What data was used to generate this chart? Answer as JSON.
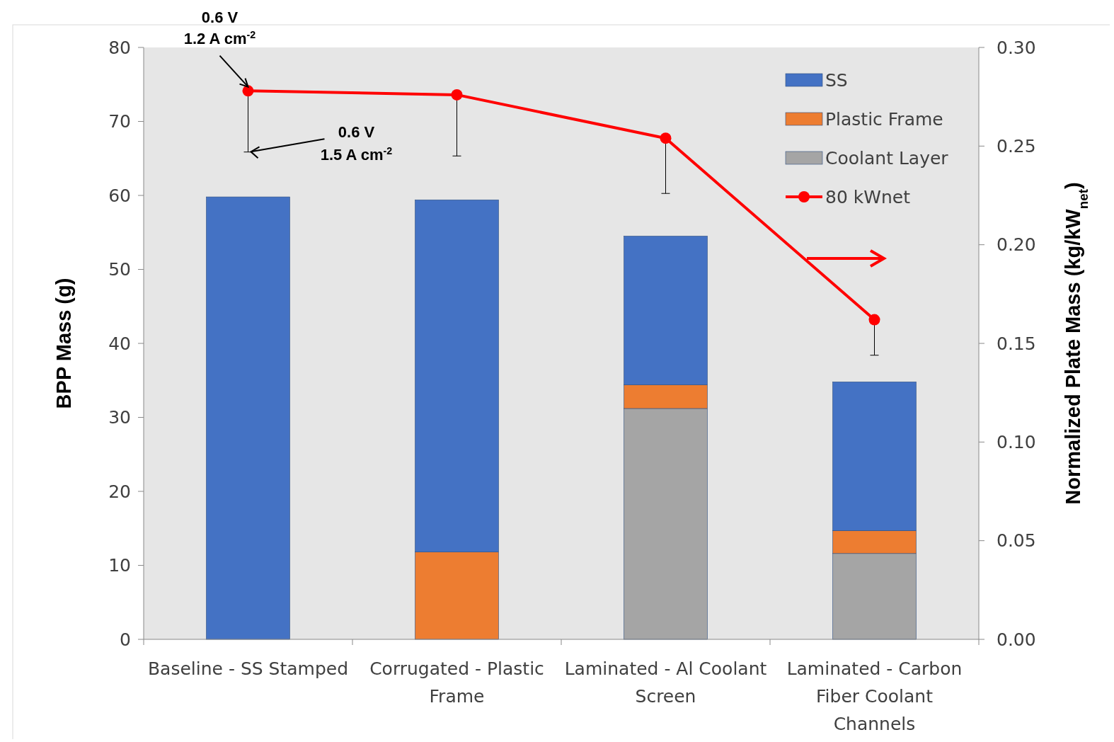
{
  "chart_data": {
    "type": "bar",
    "stacked": true,
    "categories": [
      "Baseline - SS Stamped",
      "Corrugated - Plastic Frame",
      "Laminated - Al Coolant Screen",
      "Laminated - Carbon Fiber Coolant Channels"
    ],
    "series": [
      {
        "name": "Coolant Layer",
        "color": "#a5a5a5",
        "values": [
          null,
          null,
          31.2,
          11.6
        ]
      },
      {
        "name": "Plastic Frame",
        "color": "#ed7d31",
        "values": [
          null,
          11.8,
          3.2,
          3.1
        ]
      },
      {
        "name": "SS",
        "color": "#4472c4",
        "values": [
          59.8,
          47.6,
          20.1,
          20.1
        ]
      },
      {
        "name": "80 kWnet",
        "type": "line",
        "axis": "y2",
        "color": "#ff0000",
        "marker": "circle",
        "values": [
          0.278,
          0.276,
          0.254,
          0.162
        ],
        "errors": [
          [
            0.247,
            0.278
          ],
          [
            0.245,
            0.276
          ],
          [
            0.226,
            0.254
          ],
          [
            0.144,
            0.162
          ]
        ]
      }
    ],
    "ylabel": "BPP Mass (g)",
    "y2label": "Normalized Plate Mass (kg/kW$_{net}$)",
    "ylim": [
      0,
      80
    ],
    "yticks": [
      0,
      10,
      20,
      30,
      40,
      50,
      60,
      70,
      80
    ],
    "y2lim": [
      0,
      0.3
    ],
    "y2ticks": [
      {
        "value": 0,
        "label": "0.00"
      },
      {
        "value": 0.05,
        "label": "0.05"
      },
      {
        "value": 0.1,
        "label": "0.10"
      },
      {
        "value": 0.15,
        "label": "0.15"
      },
      {
        "value": 0.2,
        "label": "0.20"
      },
      {
        "value": 0.25,
        "label": "0.25"
      },
      {
        "value": 0.3,
        "label": "0.30"
      }
    ],
    "annotations": [
      {
        "text": "0.6 V\n1.2 A cm$^{-2}$",
        "x": "Baseline - SS Stamped",
        "y": 74.1
      },
      {
        "text": "0.6 V\n1.5 A cm$^{-2}$",
        "x": "Baseline - SS Stamped",
        "y": 65.9
      }
    ],
    "legend": "top right",
    "grid": false
  }
}
